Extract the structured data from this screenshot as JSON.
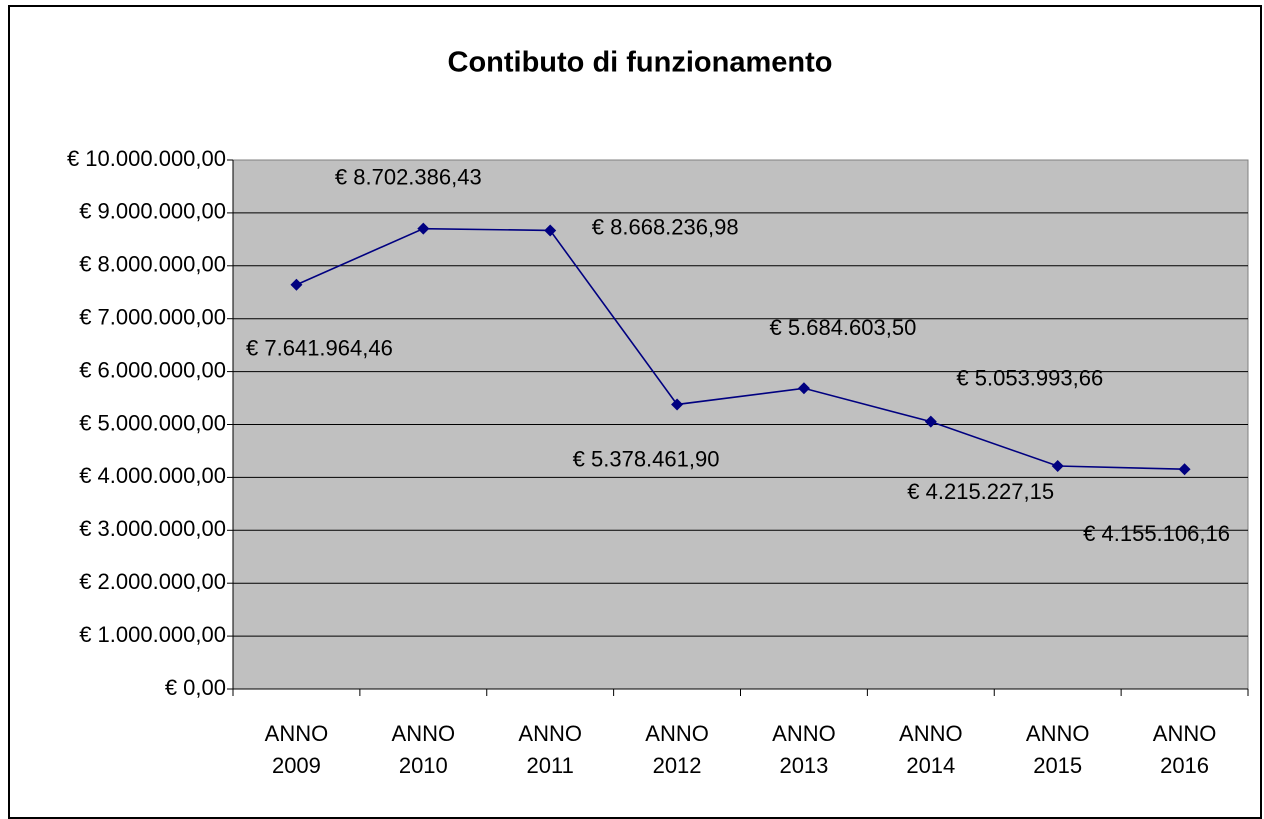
{
  "chart_data": {
    "type": "line",
    "title": "Contibuto di funzionamento",
    "categories": [
      "ANNO 2009",
      "ANNO 2010",
      "ANNO 2011",
      "ANNO 2012",
      "ANNO 2013",
      "ANNO 2014",
      "ANNO 2015",
      "ANNO 2016"
    ],
    "series": [
      {
        "color": "#000080",
        "values": [
          7641964.46,
          8702386.43,
          8668236.98,
          5378461.9,
          5684603.5,
          5053993.66,
          4215227.15,
          4155106.16
        ],
        "value_labels": [
          "€ 7.641.964,46",
          "€ 8.702.386,43",
          "€ 8.668.236,98",
          "€ 5.378.461,90",
          "€ 5.684.603,50",
          "€ 5.053.993,66",
          "€ 4.215.227,15",
          "€ 4.155.106,16"
        ]
      }
    ],
    "ylim": [
      0,
      10000000
    ],
    "yticks": [
      {
        "value": 0,
        "label": "€ 0,00"
      },
      {
        "value": 1000000,
        "label": "€ 1.000.000,00"
      },
      {
        "value": 2000000,
        "label": "€ 2.000.000,00"
      },
      {
        "value": 3000000,
        "label": "€ 3.000.000,00"
      },
      {
        "value": 4000000,
        "label": "€ 4.000.000,00"
      },
      {
        "value": 5000000,
        "label": "€ 5.000.000,00"
      },
      {
        "value": 6000000,
        "label": "€ 6.000.000,00"
      },
      {
        "value": 7000000,
        "label": "€ 7.000.000,00"
      },
      {
        "value": 8000000,
        "label": "€ 8.000.000,00"
      },
      {
        "value": 9000000,
        "label": "€ 9.000.000,00"
      },
      {
        "value": 10000000,
        "label": "€ 10.000.000,00"
      }
    ],
    "grid": true
  }
}
